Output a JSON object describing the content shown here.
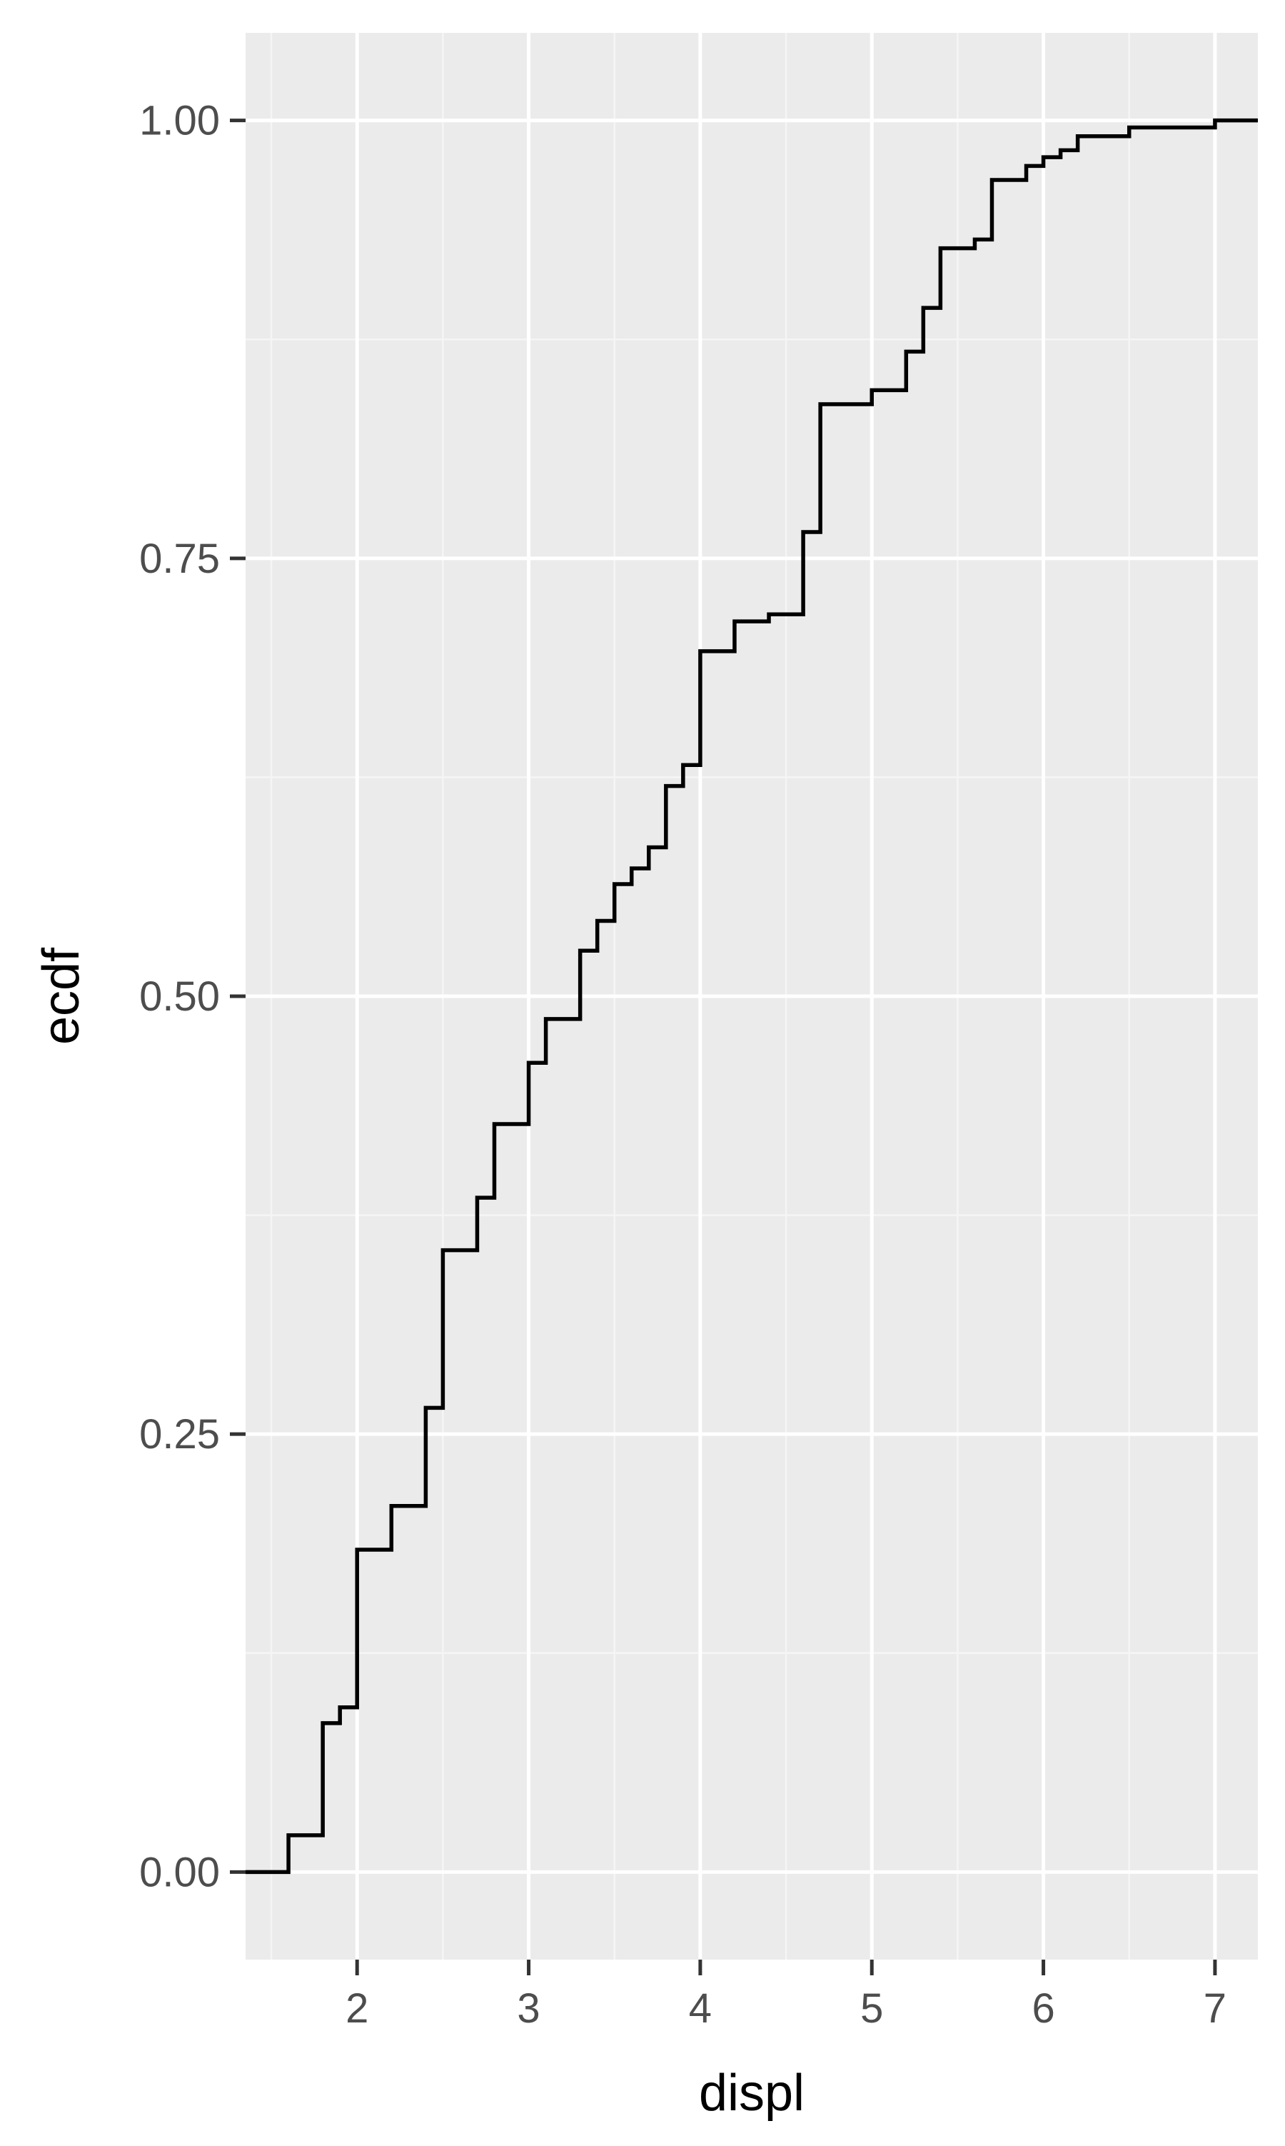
{
  "chart_data": {
    "type": "line",
    "step": true,
    "title": "",
    "xlabel": "displ",
    "ylabel": "ecdf",
    "xlim": [
      1.35,
      7.25
    ],
    "ylim": [
      -0.05,
      1.05
    ],
    "x_ticks": [
      2,
      3,
      4,
      5,
      6,
      7
    ],
    "x_tick_labels": [
      "2",
      "3",
      "4",
      "5",
      "6",
      "7"
    ],
    "y_ticks": [
      0,
      0.25,
      0.5,
      0.75,
      1
    ],
    "y_tick_labels": [
      "0.00",
      "0.25",
      "0.50",
      "0.75",
      "1.00"
    ],
    "grid": true,
    "legend": "none",
    "series": [
      {
        "x": [
          1.6,
          1.8,
          1.9,
          2.0,
          2.2,
          2.4,
          2.5,
          2.7,
          2.8,
          3.0,
          3.1,
          3.3,
          3.4,
          3.5,
          3.6,
          3.7,
          3.8,
          3.9,
          4.0,
          4.2,
          4.4,
          4.6,
          4.7,
          5.0,
          5.2,
          5.3,
          5.4,
          5.6,
          5.7,
          5.9,
          6.0,
          6.1,
          6.2,
          6.5,
          7.0
        ],
        "y": [
          0.021,
          0.085,
          0.094,
          0.184,
          0.209,
          0.265,
          0.355,
          0.385,
          0.427,
          0.462,
          0.487,
          0.526,
          0.543,
          0.564,
          0.573,
          0.585,
          0.62,
          0.632,
          0.697,
          0.714,
          0.718,
          0.765,
          0.838,
          0.846,
          0.868,
          0.893,
          0.927,
          0.932,
          0.966,
          0.974,
          0.979,
          0.983,
          0.991,
          0.996,
          1.0
        ]
      }
    ],
    "colors": {
      "panel_background": "#ebebeb",
      "grid_major": "#ffffff",
      "grid_minor": "#f5f5f5",
      "line": "#000000",
      "tick_label": "#4d4d4d",
      "axis_title": "#000000"
    }
  }
}
